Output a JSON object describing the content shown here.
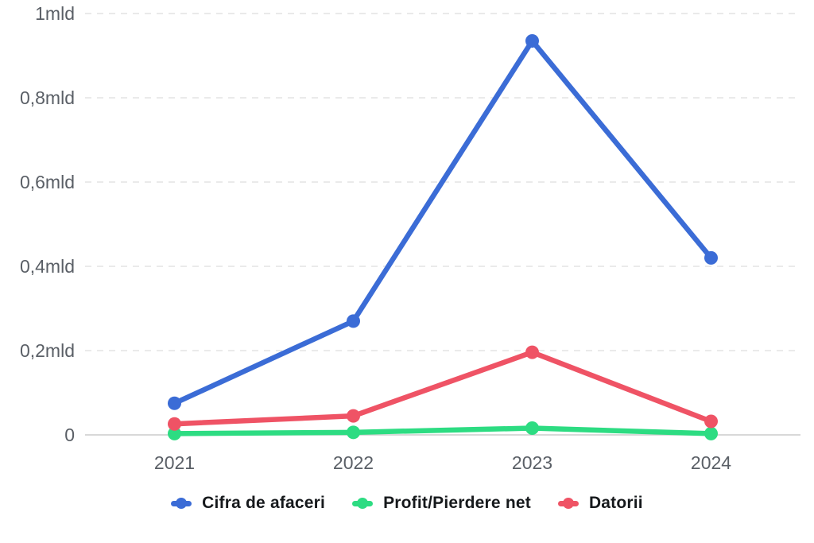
{
  "chart_data": {
    "type": "line",
    "title": "",
    "xlabel": "",
    "ylabel": "",
    "unit": "mld",
    "categories": [
      "2021",
      "2022",
      "2023",
      "2024"
    ],
    "series": [
      {
        "name": "Cifra de afaceri",
        "color": "#3B6CD6",
        "values": [
          0.075,
          0.27,
          0.935,
          0.42
        ]
      },
      {
        "name": "Profit/Pierdere net",
        "color": "#2DDC82",
        "values": [
          0.003,
          0.006,
          0.016,
          0.003
        ]
      },
      {
        "name": "Datorii",
        "color": "#EF5365",
        "values": [
          0.026,
          0.045,
          0.196,
          0.032
        ]
      }
    ],
    "y_ticks": [
      {
        "value": 0.0,
        "label": "0"
      },
      {
        "value": 0.2,
        "label": "0,2mld"
      },
      {
        "value": 0.4,
        "label": "0,4mld"
      },
      {
        "value": 0.6,
        "label": "0,6mld"
      },
      {
        "value": 0.8,
        "label": "0,8mld"
      },
      {
        "value": 1.0,
        "label": "1mld"
      }
    ],
    "ylim": [
      0,
      1
    ],
    "grid": "horizontal dashed",
    "legend_position": "bottom",
    "colors": {
      "background": "#ffffff",
      "grid_line": "#e4e4e4",
      "axis_line": "#cccccc",
      "tick_text": "#5a5f66",
      "legend_text": "#16191c"
    }
  }
}
